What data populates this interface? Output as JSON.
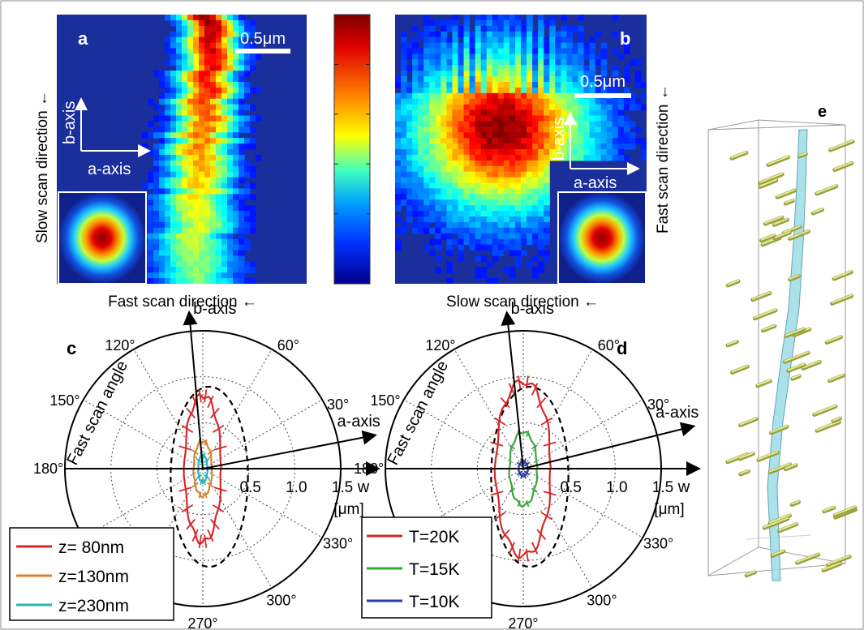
{
  "panels": {
    "a": {
      "letter": "a",
      "scalebar": "0.5μm",
      "b_axis": "b-axis",
      "a_axis": "a-axis",
      "ylabel": "Slow scan direction ←",
      "xlabel": "Fast scan direction ←"
    },
    "b": {
      "letter": "b",
      "scalebar": "0.5μm",
      "b_axis": "b-axis",
      "a_axis": "a-axis",
      "ylabel": "Fast scan direction ←",
      "xlabel": "Slow scan direction ←"
    },
    "c": {
      "letter": "c"
    },
    "d": {
      "letter": "d"
    },
    "e": {
      "letter": "e"
    }
  },
  "polar_labels": {
    "b_axis": "b-axis",
    "a_axis": "a-axis",
    "w": "w",
    "unit": "[μm]",
    "fast_scan_angle": "Fast scan angle",
    "radial_ticks": [
      "0.5",
      "1.0",
      "1.5"
    ],
    "angles": {
      "a120": "120°",
      "a60": "60°",
      "a150": "150°",
      "a30": "30°",
      "a180": "180°",
      "a330": "330°",
      "a300": "300°",
      "a270": "270°"
    }
  },
  "chart_data": [
    {
      "type": "line",
      "panel": "c",
      "polar": true,
      "radial_range": [
        0,
        1.5
      ],
      "radial_ticks": [
        0.5,
        1.0,
        1.5
      ],
      "series": [
        {
          "name": "z= 80nm",
          "color": "#d62728",
          "semi_axes_um": {
            "a": 0.2,
            "b": 0.8
          }
        },
        {
          "name": "z=130nm",
          "color": "#d9822b",
          "semi_axes_um": {
            "a": 0.1,
            "b": 0.3
          }
        },
        {
          "name": "z=230nm",
          "color": "#2ab5b5",
          "semi_axes_um": {
            "a": 0.05,
            "b": 0.15
          }
        }
      ]
    },
    {
      "type": "line",
      "panel": "d",
      "polar": true,
      "radial_range": [
        0,
        1.5
      ],
      "radial_ticks": [
        0.5,
        1.0,
        1.5
      ],
      "series": [
        {
          "name": "T=20K",
          "color": "#d62728",
          "semi_axes_um": {
            "a": 0.3,
            "b": 0.95
          }
        },
        {
          "name": "T=15K",
          "color": "#3aa63a",
          "semi_axes_um": {
            "a": 0.15,
            "b": 0.4
          }
        },
        {
          "name": "T=10K",
          "color": "#2a3f9f",
          "semi_axes_um": {
            "a": 0.05,
            "b": 0.08
          }
        }
      ]
    }
  ]
}
